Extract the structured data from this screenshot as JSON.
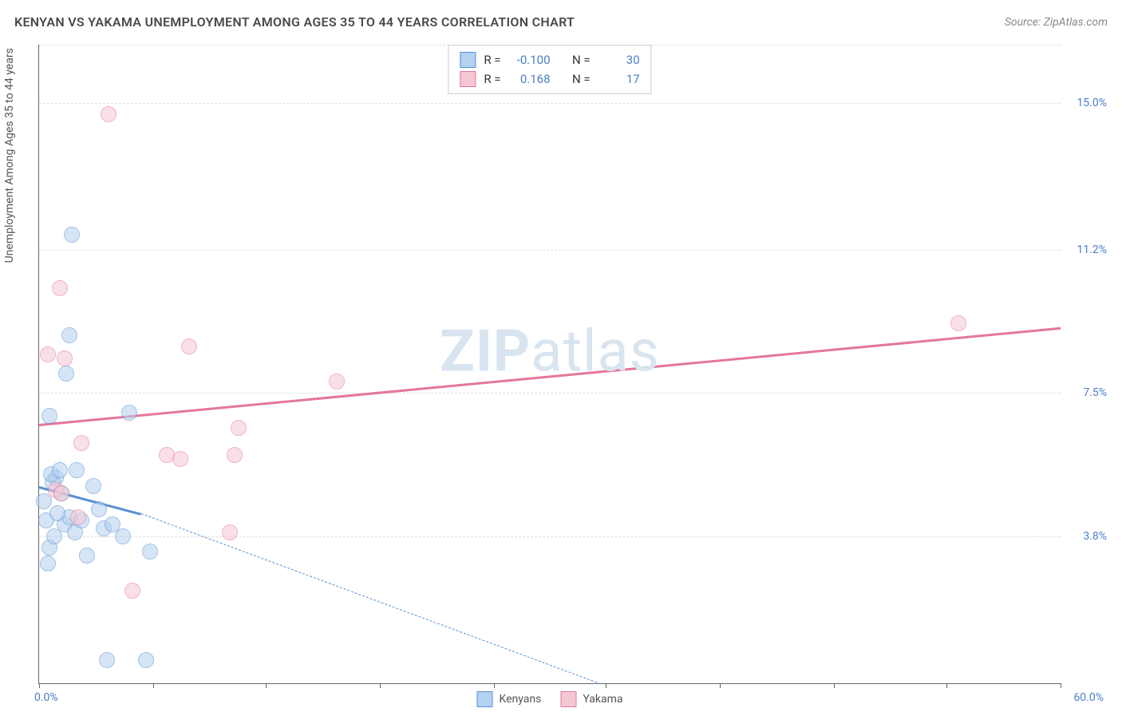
{
  "title": "KENYAN VS YAKAMA UNEMPLOYMENT AMONG AGES 35 TO 44 YEARS CORRELATION CHART",
  "source": "Source: ZipAtlas.com",
  "watermark_bold": "ZIP",
  "watermark_rest": "atlas",
  "y_axis_label": "Unemployment Among Ages 35 to 44 years",
  "chart": {
    "type": "scatter",
    "xlim": [
      0,
      60
    ],
    "ylim": [
      0,
      16.5
    ],
    "x_min_label": "0.0%",
    "x_max_label": "60.0%",
    "y_ticks": [
      {
        "val": 15.0,
        "label": "15.0%"
      },
      {
        "val": 11.2,
        "label": "11.2%"
      },
      {
        "val": 7.5,
        "label": "7.5%"
      },
      {
        "val": 3.8,
        "label": "3.8%"
      }
    ],
    "x_tick_positions": [
      0,
      6.7,
      13.3,
      20,
      26.7,
      33.3,
      40,
      46.7,
      53.3,
      60
    ],
    "grid_color": "#dddddd",
    "background": "#ffffff",
    "point_radius": 9,
    "point_opacity": 0.55,
    "series": [
      {
        "name": "Kenyans",
        "fill": "#b3d1f0",
        "stroke": "#5a91d1",
        "r": -0.1,
        "n": 30,
        "trend": {
          "y_at_x0": 5.1,
          "solid_until_x": 6.0,
          "y_at_solid_end": 4.4,
          "y_at_x_max": 0.0,
          "x_at_zero": 33.0
        },
        "points": [
          {
            "x": 0.5,
            "y": 3.1
          },
          {
            "x": 0.6,
            "y": 3.5
          },
          {
            "x": 0.4,
            "y": 4.2
          },
          {
            "x": 0.3,
            "y": 4.7
          },
          {
            "x": 1.0,
            "y": 5.3
          },
          {
            "x": 0.8,
            "y": 5.2
          },
          {
            "x": 0.7,
            "y": 5.4
          },
          {
            "x": 1.2,
            "y": 5.5
          },
          {
            "x": 1.5,
            "y": 4.1
          },
          {
            "x": 1.8,
            "y": 4.3
          },
          {
            "x": 2.1,
            "y": 3.9
          },
          {
            "x": 2.5,
            "y": 4.2
          },
          {
            "x": 2.8,
            "y": 3.3
          },
          {
            "x": 3.2,
            "y": 5.1
          },
          {
            "x": 3.5,
            "y": 4.5
          },
          {
            "x": 3.8,
            "y": 4.0
          },
          {
            "x": 4.3,
            "y": 4.1
          },
          {
            "x": 4.9,
            "y": 3.8
          },
          {
            "x": 5.3,
            "y": 7.0
          },
          {
            "x": 6.5,
            "y": 3.4
          },
          {
            "x": 4.0,
            "y": 0.6
          },
          {
            "x": 6.3,
            "y": 0.6
          },
          {
            "x": 1.9,
            "y": 11.6
          },
          {
            "x": 1.8,
            "y": 9.0
          },
          {
            "x": 1.6,
            "y": 8.0
          },
          {
            "x": 0.6,
            "y": 6.9
          },
          {
            "x": 2.2,
            "y": 5.5
          },
          {
            "x": 1.3,
            "y": 4.9
          },
          {
            "x": 1.1,
            "y": 4.4
          },
          {
            "x": 0.9,
            "y": 3.8
          }
        ]
      },
      {
        "name": "Yakama",
        "fill": "#f5c7d3",
        "stroke": "#e3779a",
        "r": 0.168,
        "n": 17,
        "trend": {
          "y_at_x0": 6.7,
          "y_at_x_max": 9.2
        },
        "points": [
          {
            "x": 4.1,
            "y": 14.7
          },
          {
            "x": 1.2,
            "y": 10.2
          },
          {
            "x": 0.5,
            "y": 8.5
          },
          {
            "x": 1.5,
            "y": 8.4
          },
          {
            "x": 8.8,
            "y": 8.7
          },
          {
            "x": 17.5,
            "y": 7.8
          },
          {
            "x": 54.0,
            "y": 9.3
          },
          {
            "x": 2.5,
            "y": 6.2
          },
          {
            "x": 11.7,
            "y": 6.6
          },
          {
            "x": 7.5,
            "y": 5.9
          },
          {
            "x": 8.3,
            "y": 5.8
          },
          {
            "x": 1.0,
            "y": 5.0
          },
          {
            "x": 1.3,
            "y": 4.9
          },
          {
            "x": 2.3,
            "y": 4.3
          },
          {
            "x": 11.2,
            "y": 3.9
          },
          {
            "x": 5.5,
            "y": 2.4
          },
          {
            "x": 11.5,
            "y": 5.9
          }
        ]
      }
    ]
  },
  "legend_top": {
    "r_label": "R =",
    "n_label": "N ="
  },
  "legend_bottom": [
    "Kenyans",
    "Yakama"
  ]
}
